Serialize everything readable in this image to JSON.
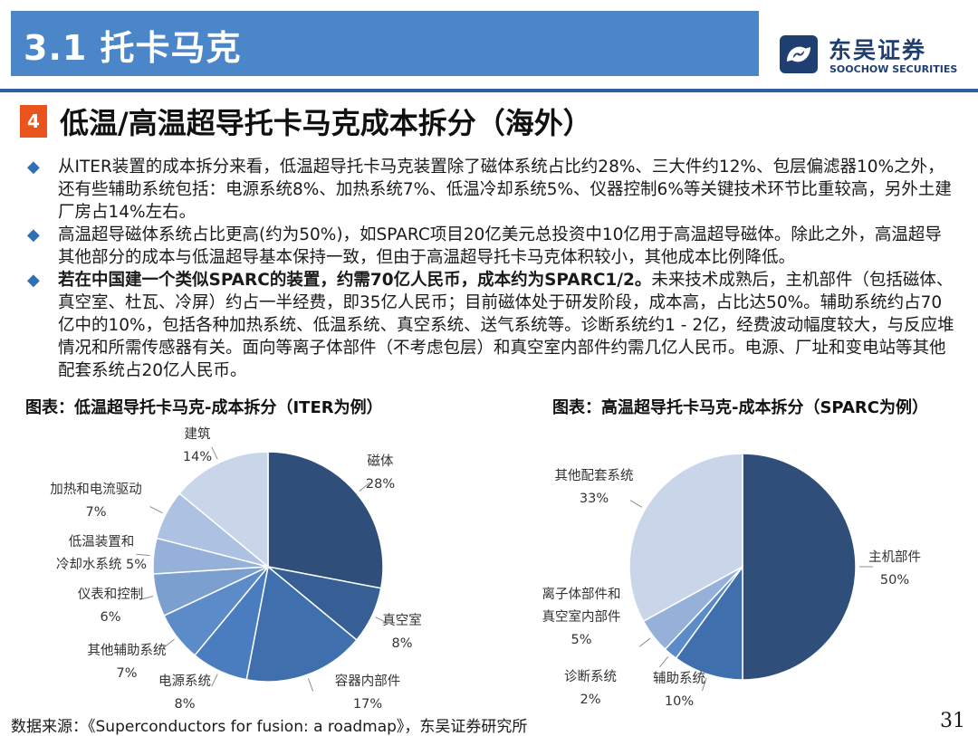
{
  "header": {
    "section_title": "3.1 托卡马克"
  },
  "logo": {
    "name_cn": "东吴证券",
    "name_en": "SOOCHOW SECURITIES"
  },
  "slide": {
    "number": "4",
    "subtitle": "低温/高温超导托卡马克成本拆分（海外）",
    "bullets": [
      {
        "bold": "",
        "text": "从ITER装置的成本拆分来看，低温超导托卡马克装置除了磁体系统占比约28%、三大件约12%、包层偏滤器10%之外，还有些辅助系统包括：电源系统8%、加热系统7%、低温冷却系统5%、仪器控制6%等关键技术环节比重较高，另外土建厂房占14%左右。"
      },
      {
        "bold": "",
        "text": "高温超导磁体系统占比更高(约为50%)，如SPARC项目20亿美元总投资中10亿用于高温超导磁体。除此之外，高温超导其他部分的成本与低温超导基本保持一致，但由于高温超导托卡马克体积较小，其他成本比例降低。"
      },
      {
        "bold": "若在中国建一个类似SPARC的装置，约需70亿人民币，成本约为SPARC1/2。",
        "text": "未来技术成熟后，主机部件（包括磁体、真空室、杜瓦、冷屏）约占一半经费，即35亿人民币；目前磁体处于研发阶段，成本高，占比达50%。辅助系统约占70亿中的10%，包括各种加热系统、低温系统、真空系统、送气系统等。诊断系统约1 - 2亿，经费波动幅度较大，与反应堆情况和所需传感器有关。面向等离子体部件（不考虑包层）和真空室内部件约需几亿人民币。电源、厂址和变电站等其他配套系统占20亿人民币。"
      }
    ]
  },
  "chart_data": [
    {
      "type": "pie",
      "title": "图表：低温超导托卡马克-成本拆分（ITER为例）",
      "unit": "%",
      "slices": [
        {
          "label": "磁体",
          "value": 28,
          "color": "#2f4f7a"
        },
        {
          "label": "真空室",
          "value": 8,
          "color": "#375f96"
        },
        {
          "label": "容器内部件",
          "value": 17,
          "color": "#3f6fad"
        },
        {
          "label": "电源系统",
          "value": 8,
          "color": "#4a7cc0"
        },
        {
          "label": "其他辅助系统",
          "value": 7,
          "color": "#5b8bc8"
        },
        {
          "label": "仪表和控制",
          "value": 6,
          "color": "#7b9fcf"
        },
        {
          "label": "低温装置和冷却水系统",
          "value": 5,
          "color": "#95b1d9"
        },
        {
          "label": "加热和电流驱动",
          "value": 7,
          "color": "#adc2e2"
        },
        {
          "label": "建筑",
          "value": 14,
          "color": "#c9d6ea"
        }
      ]
    },
    {
      "type": "pie",
      "title": "图表：高温超导托卡马克-成本拆分（SPARC为例）",
      "unit": "%",
      "slices": [
        {
          "label": "主机部件",
          "value": 50,
          "color": "#2f4f7a"
        },
        {
          "label": "辅助系统",
          "value": 10,
          "color": "#3f6fad"
        },
        {
          "label": "诊断系统",
          "value": 2,
          "color": "#5b8bc8"
        },
        {
          "label": "离子体部件和真空室内部件",
          "value": 5,
          "color": "#95b1d9"
        },
        {
          "label": "其他配套系统",
          "value": 33,
          "color": "#c9d6ea"
        }
      ]
    }
  ],
  "footer": {
    "source": "数据来源：《Superconductors for fusion: a roadmap》，东吴证券研究所",
    "page": "31"
  }
}
